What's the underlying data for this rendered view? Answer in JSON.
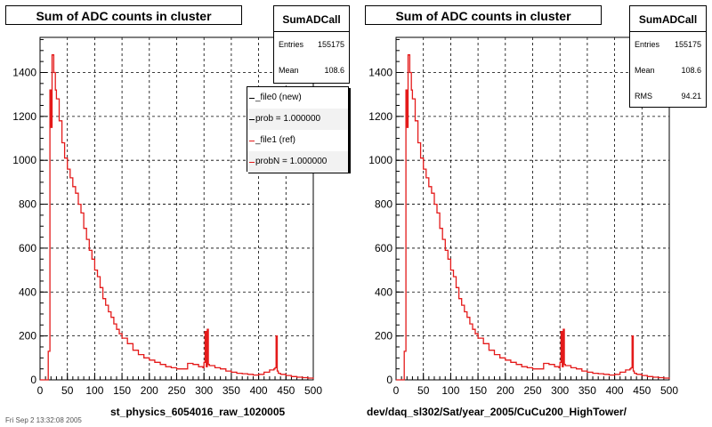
{
  "footer_text": "Fri Sep 2 13:32:08 2005",
  "chart_data": [
    {
      "type": "line",
      "title": "Sum of ADC counts in cluster",
      "xlabel": "st_physics_6054016_raw_1020005",
      "ylabel": "",
      "xlim": [
        0,
        500
      ],
      "ylim": [
        0,
        1560
      ],
      "grid": true,
      "xticks": [
        "0",
        "50",
        "100",
        "150",
        "200",
        "250",
        "300",
        "350",
        "400",
        "450",
        "500"
      ],
      "yticks": [
        "0",
        "200",
        "400",
        "600",
        "800",
        "1000",
        "1200",
        "1400"
      ],
      "stats": {
        "name": "SumADCall",
        "entries_label": "Entries",
        "entries": "155175",
        "mean_label": "Mean",
        "mean": "108.6"
      },
      "legend": {
        "placement": "top-right",
        "entries": [
          {
            "label": "_file0 (new)",
            "color": "#000000"
          },
          {
            "label": "prob = 1.000000",
            "color": "#000000"
          },
          {
            "label": "_file1 (ref)",
            "color": "#e41a1a"
          },
          {
            "label": "probN = 1.000000",
            "color": "#e41a1a"
          }
        ]
      },
      "series": [
        {
          "color": "#e41a1a",
          "x": [
            0,
            10,
            14,
            15,
            18,
            20,
            22,
            25,
            28,
            30,
            35,
            40,
            45,
            50,
            55,
            60,
            65,
            70,
            75,
            80,
            85,
            90,
            95,
            100,
            105,
            110,
            115,
            120,
            125,
            130,
            135,
            140,
            145,
            150,
            160,
            170,
            180,
            190,
            200,
            210,
            220,
            230,
            240,
            250,
            260,
            270,
            280,
            290,
            298,
            300,
            302,
            304,
            306,
            308,
            310,
            320,
            330,
            340,
            350,
            360,
            370,
            380,
            390,
            400,
            410,
            420,
            428,
            430,
            432,
            434,
            436,
            440,
            450,
            460,
            470,
            480,
            490,
            500
          ],
          "y": [
            0,
            0,
            0,
            130,
            1320,
            1150,
            1480,
            1400,
            1320,
            1280,
            1180,
            1080,
            1010,
            960,
            920,
            880,
            850,
            800,
            760,
            690,
            640,
            590,
            550,
            500,
            470,
            420,
            370,
            340,
            310,
            285,
            255,
            230,
            210,
            190,
            165,
            135,
            115,
            100,
            90,
            80,
            70,
            60,
            55,
            50,
            50,
            75,
            70,
            60,
            55,
            80,
            220,
            60,
            230,
            70,
            65,
            55,
            50,
            40,
            35,
            30,
            28,
            25,
            22,
            25,
            35,
            45,
            50,
            55,
            200,
            40,
            30,
            25,
            20,
            15,
            12,
            10,
            8,
            5
          ]
        }
      ]
    },
    {
      "type": "line",
      "title": "Sum of ADC counts in cluster",
      "xlabel": "dev/daq_sl302/Sat/year_2005/CuCu200_HighTower/",
      "ylabel": "",
      "xlim": [
        0,
        500
      ],
      "ylim": [
        0,
        1560
      ],
      "grid": true,
      "xticks": [
        "0",
        "50",
        "100",
        "150",
        "200",
        "250",
        "300",
        "350",
        "400",
        "450",
        "500"
      ],
      "yticks": [
        "0",
        "200",
        "400",
        "600",
        "800",
        "1000",
        "1200",
        "1400"
      ],
      "stats": {
        "name": "SumADCall",
        "entries_label": "Entries",
        "entries": "155175",
        "mean_label": "Mean",
        "mean": "108.6",
        "rms_label": "RMS",
        "rms": "94.21"
      },
      "series": [
        {
          "color": "#e41a1a",
          "x": [
            0,
            10,
            14,
            15,
            18,
            20,
            22,
            25,
            28,
            30,
            35,
            40,
            45,
            50,
            55,
            60,
            65,
            70,
            75,
            80,
            85,
            90,
            95,
            100,
            105,
            110,
            115,
            120,
            125,
            130,
            135,
            140,
            145,
            150,
            160,
            170,
            180,
            190,
            200,
            210,
            220,
            230,
            240,
            250,
            260,
            270,
            280,
            290,
            298,
            300,
            302,
            304,
            306,
            308,
            310,
            320,
            330,
            340,
            350,
            360,
            370,
            380,
            390,
            400,
            410,
            420,
            428,
            430,
            432,
            434,
            436,
            440,
            450,
            460,
            470,
            480,
            490,
            500
          ],
          "y": [
            0,
            0,
            0,
            130,
            1320,
            1150,
            1480,
            1400,
            1320,
            1280,
            1180,
            1080,
            1010,
            960,
            920,
            880,
            850,
            800,
            760,
            690,
            640,
            590,
            550,
            500,
            470,
            420,
            370,
            340,
            310,
            285,
            255,
            230,
            210,
            190,
            165,
            135,
            115,
            100,
            90,
            80,
            70,
            60,
            55,
            50,
            50,
            75,
            70,
            60,
            55,
            80,
            220,
            60,
            230,
            70,
            65,
            55,
            50,
            40,
            35,
            30,
            28,
            25,
            22,
            25,
            35,
            45,
            50,
            55,
            200,
            40,
            30,
            25,
            20,
            15,
            12,
            10,
            8,
            5
          ]
        }
      ]
    }
  ]
}
